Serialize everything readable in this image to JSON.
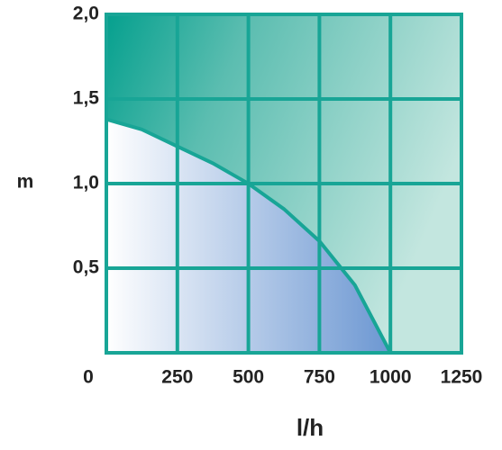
{
  "chart_data": {
    "type": "line",
    "x_label": "l/h",
    "y_label": "m",
    "x": [
      0,
      125,
      250,
      375,
      500,
      625,
      750,
      875,
      1000
    ],
    "series": [
      {
        "color": "#18a596",
        "values": [
          1.38,
          1.32,
          1.22,
          1.12,
          1.0,
          0.85,
          0.66,
          0.4,
          0
        ]
      }
    ],
    "xlim": [
      0,
      1250
    ],
    "ylim": [
      0,
      2.0
    ],
    "xticks": [
      0,
      250,
      500,
      750,
      1000,
      1250
    ],
    "yticks": [
      {
        "value": 0.5,
        "label": "0,5"
      },
      {
        "value": 1.0,
        "label": "1,0"
      },
      {
        "value": 1.5,
        "label": "1,5"
      },
      {
        "value": 2.0,
        "label": "2,0"
      }
    ],
    "grid": true
  }
}
